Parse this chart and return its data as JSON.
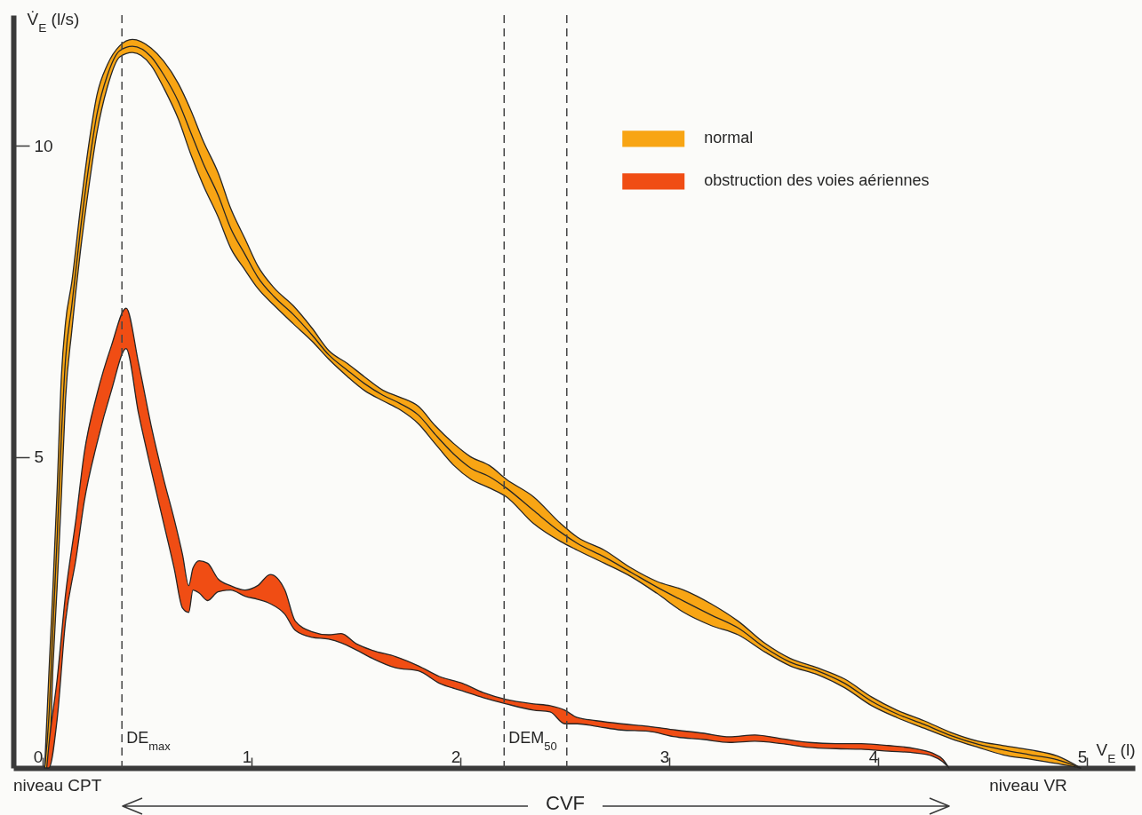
{
  "chart_data": {
    "type": "line",
    "xlabel": "V$_{E}$ (l)",
    "ylabel": "V̇$_{E}$ (l/s)",
    "xlim": [
      -0.14,
      5.23
    ],
    "ylim": [
      0,
      12.1
    ],
    "xticks": [
      0,
      1,
      2,
      3,
      4,
      5
    ],
    "yticks": [
      5,
      10
    ],
    "legend": "top right",
    "series": [
      {
        "name": "normal",
        "color": "#f8a514",
        "x": [
          0.01,
          0.03,
          0.05,
          0.07,
          0.09,
          0.11,
          0.14,
          0.18,
          0.22,
          0.26,
          0.31,
          0.37,
          0.43,
          0.52,
          0.58,
          0.65,
          0.71,
          0.77,
          0.84,
          0.9,
          0.97,
          1.03,
          1.11,
          1.2,
          1.29,
          1.37,
          1.46,
          1.54,
          1.63,
          1.71,
          1.8,
          1.88,
          1.97,
          2.05,
          2.14,
          2.22,
          2.35,
          2.48,
          2.56,
          2.69,
          2.82,
          2.94,
          3.07,
          3.2,
          3.33,
          3.46,
          3.58,
          3.71,
          3.84,
          3.97,
          4.09,
          4.22,
          4.35,
          4.48,
          4.6,
          4.73,
          4.86,
          4.97
        ],
        "values": [
          null,
          null,
          null,
          null,
          null,
          null,
          null,
          null,
          null,
          null,
          null,
          null,
          null,
          null,
          null,
          null,
          null,
          null,
          null,
          null,
          null,
          null,
          null,
          null,
          null,
          null,
          null,
          null,
          null,
          null,
          null,
          null,
          null,
          null,
          null,
          null,
          null,
          null,
          null,
          null,
          null,
          null,
          null,
          null,
          null,
          null,
          null,
          null,
          null,
          null,
          null,
          null,
          null,
          null,
          null,
          null,
          null,
          null
        ],
        "lower": [
          0,
          0,
          1.64,
          2.93,
          4.36,
          5.93,
          7.03,
          8.27,
          9.3,
          10.2,
          10.94,
          11.43,
          11.5,
          11.29,
          10.93,
          10.43,
          9.86,
          9.36,
          8.86,
          8.36,
          8.0,
          7.71,
          7.43,
          7.14,
          6.86,
          6.57,
          6.29,
          6.07,
          5.9,
          5.76,
          5.53,
          5.21,
          4.86,
          4.64,
          4.5,
          4.36,
          3.93,
          3.64,
          3.5,
          3.29,
          3.07,
          2.81,
          2.5,
          2.29,
          2.14,
          1.86,
          1.64,
          1.5,
          1.29,
          1.0,
          0.81,
          0.64,
          0.47,
          0.33,
          0.21,
          0.14,
          0.07,
          0
        ],
        "upper": [
          0,
          1.5,
          2.93,
          4.5,
          6.29,
          7.16,
          7.81,
          8.96,
          9.99,
          10.81,
          11.3,
          11.61,
          11.71,
          11.57,
          11.36,
          11.0,
          10.57,
          10.07,
          9.57,
          9.0,
          8.5,
          8.07,
          7.71,
          7.43,
          7.07,
          6.71,
          6.5,
          6.29,
          6.07,
          5.96,
          5.81,
          5.5,
          5.21,
          5.0,
          4.86,
          4.64,
          4.36,
          3.93,
          3.71,
          3.5,
          3.21,
          3.0,
          2.86,
          2.64,
          2.36,
          2.0,
          1.76,
          1.61,
          1.43,
          1.14,
          0.93,
          0.76,
          0.57,
          0.43,
          0.36,
          0.29,
          0.19,
          0
        ]
      },
      {
        "color": "#262626",
        "x": [
          0.01,
          0.03,
          0.05,
          0.07,
          0.09,
          0.11,
          0.14,
          0.18,
          0.22,
          0.26,
          0.31,
          0.37,
          0.43,
          0.52,
          0.58,
          0.65,
          0.71,
          0.77,
          0.84,
          0.9,
          0.97,
          1.03,
          1.11,
          1.2,
          1.29,
          1.37,
          1.46,
          1.54,
          1.63,
          1.71,
          1.8,
          1.88,
          1.97,
          2.05,
          2.14,
          2.22,
          2.35,
          2.48,
          2.56,
          2.69,
          2.82,
          2.94,
          3.07,
          3.2,
          3.33,
          3.46,
          3.58,
          3.71,
          3.84,
          3.97,
          4.09,
          4.22,
          4.35,
          4.48,
          4.6,
          4.73,
          4.86,
          4.97
        ],
        "values": [
          0,
          0.8,
          2.29,
          3.71,
          5.33,
          6.57,
          7.43,
          8.61,
          9.64,
          10.5,
          11.13,
          11.53,
          11.6,
          11.43,
          11.14,
          10.71,
          10.21,
          9.71,
          9.21,
          8.68,
          8.25,
          7.89,
          7.57,
          7.29,
          6.96,
          6.64,
          6.39,
          6.18,
          5.99,
          5.86,
          5.67,
          5.36,
          5.04,
          4.82,
          4.68,
          4.5,
          4.14,
          3.79,
          3.61,
          3.39,
          3.14,
          2.91,
          2.68,
          2.46,
          2.25,
          1.93,
          1.7,
          1.56,
          1.36,
          1.07,
          0.87,
          0.7,
          0.52,
          0.38,
          0.29,
          0.21,
          0.13,
          0
        ]
      },
      {
        "name": "obstruction des voies aériennes",
        "color": "#f04d14",
        "x": [
          0.02,
          0.03,
          0.07,
          0.11,
          0.16,
          0.2,
          0.26,
          0.33,
          0.4,
          0.46,
          0.52,
          0.58,
          0.63,
          0.67,
          0.7,
          0.72,
          0.75,
          0.79,
          0.84,
          0.9,
          0.97,
          1.03,
          1.09,
          1.16,
          1.21,
          1.29,
          1.37,
          1.43,
          1.5,
          1.58,
          1.69,
          1.8,
          1.9,
          2.01,
          2.11,
          2.22,
          2.35,
          2.43,
          2.5,
          2.56,
          2.65,
          2.77,
          2.9,
          3.03,
          3.16,
          3.29,
          3.41,
          3.54,
          3.67,
          3.8,
          3.92,
          4.05,
          4.18,
          4.26,
          4.31,
          4.34
        ],
        "values": [
          null,
          null,
          null,
          null,
          null,
          null,
          null,
          null,
          null,
          null,
          null,
          null,
          null,
          null,
          null,
          null,
          null,
          null,
          null,
          null,
          null,
          null,
          null,
          null,
          null,
          null,
          null,
          null,
          null,
          null,
          null,
          null,
          null,
          null,
          null,
          null,
          null,
          null,
          null,
          null,
          null,
          null,
          null,
          null,
          null,
          null,
          null,
          null,
          null,
          null,
          null,
          null,
          null,
          null,
          null,
          null
        ],
        "lower": [
          0,
          0,
          0.79,
          2.36,
          3.36,
          4.29,
          5.21,
          6.07,
          6.74,
          5.69,
          4.79,
          3.93,
          3.21,
          2.57,
          2.5,
          2.86,
          2.81,
          2.69,
          2.83,
          2.86,
          2.76,
          2.71,
          2.64,
          2.47,
          2.21,
          2.1,
          2.07,
          2.01,
          1.9,
          1.76,
          1.61,
          1.56,
          1.36,
          1.24,
          1.13,
          1.03,
          0.93,
          0.9,
          0.71,
          0.71,
          0.67,
          0.61,
          0.59,
          0.5,
          0.46,
          0.41,
          0.43,
          0.39,
          0.33,
          0.31,
          0.3,
          0.27,
          0.24,
          0.19,
          0.1,
          0
        ],
        "upper": [
          0,
          0.36,
          1.43,
          2.79,
          4.0,
          5.07,
          6.0,
          6.79,
          7.39,
          6.5,
          5.5,
          4.64,
          4.0,
          3.43,
          2.93,
          3.21,
          3.33,
          3.29,
          3.04,
          2.93,
          2.86,
          2.93,
          3.11,
          2.86,
          2.36,
          2.19,
          2.14,
          2.16,
          2.0,
          1.89,
          1.79,
          1.64,
          1.47,
          1.36,
          1.21,
          1.1,
          1.03,
          1.0,
          0.93,
          0.81,
          0.76,
          0.71,
          0.67,
          0.61,
          0.56,
          0.5,
          0.53,
          0.47,
          0.41,
          0.39,
          0.39,
          0.36,
          0.31,
          0.24,
          0.14,
          0
        ]
      }
    ],
    "ref_lines": [
      {
        "axis": "x",
        "value": 0.38,
        "label": "DE$_{max}$",
        "line_style": "dashed",
        "color": "#444444"
      },
      {
        "axis": "x",
        "value": 2.21,
        "label": "DEM$_{50}$",
        "line_style": "dashed",
        "color": "#444444"
      },
      {
        "axis": "x",
        "value": 2.51,
        "label": null,
        "line_style": "dashed",
        "color": "#444444"
      }
    ],
    "annotations": [
      "niveau CPT",
      "niveau VR",
      "CVF"
    ]
  }
}
